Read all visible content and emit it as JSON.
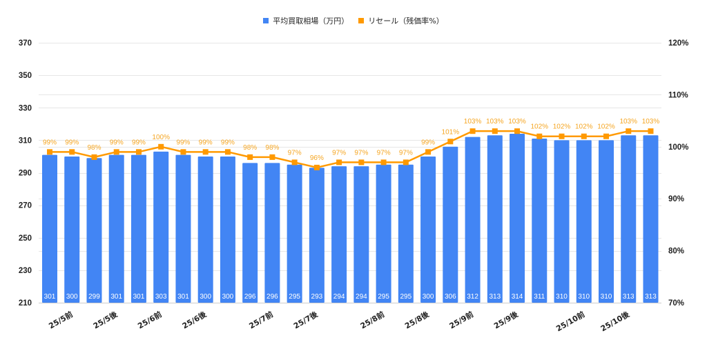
{
  "legend": {
    "bar_series": "平均買取相場（万円）",
    "line_series": "リセール（残価率%）"
  },
  "colors": {
    "bar": "#4285F4",
    "line": "#FF9900",
    "line_label": "#F5A623",
    "grid": "#E6E6E6",
    "axis_text": "#222222"
  },
  "chart_data": {
    "type": "bar+line",
    "title": "",
    "legend_position": "top",
    "categories": [
      "25/5前",
      "25/5前",
      "25/5後",
      "25/5後",
      "25/6前",
      "25/6前",
      "25/6後",
      "25/6後",
      "25/6後",
      "25/7前",
      "25/7前",
      "25/7後",
      "25/7後",
      "25/7後",
      "25/8前",
      "25/8前",
      "25/8後",
      "25/8後",
      "25/9前",
      "25/9前",
      "25/9後",
      "25/9後",
      "25/9後",
      "25/10前",
      "25/10前",
      "25/10後",
      "25/10後",
      "25/10後"
    ],
    "x_tick_labels": [
      {
        "index": 1,
        "label": "25/5前"
      },
      {
        "index": 3,
        "label": "25/5後"
      },
      {
        "index": 5,
        "label": "25/6前"
      },
      {
        "index": 7,
        "label": "25/6後"
      },
      {
        "index": 10,
        "label": "25/7前"
      },
      {
        "index": 12,
        "label": "25/7後"
      },
      {
        "index": 15,
        "label": "25/8前"
      },
      {
        "index": 17,
        "label": "25/8後"
      },
      {
        "index": 19,
        "label": "25/9前"
      },
      {
        "index": 21,
        "label": "25/9後"
      },
      {
        "index": 24,
        "label": "25/10前"
      },
      {
        "index": 26,
        "label": "25/10後"
      }
    ],
    "series": [
      {
        "name": "平均買取相場（万円）",
        "type": "bar",
        "axis": "left",
        "values": [
          301,
          300,
          299,
          301,
          301,
          303,
          301,
          300,
          300,
          296,
          296,
          295,
          293,
          294,
          294,
          295,
          295,
          300,
          306,
          312,
          313,
          314,
          311,
          310,
          310,
          310,
          313,
          313
        ]
      },
      {
        "name": "リセール（残価率%）",
        "type": "line",
        "axis": "right",
        "values": [
          99,
          99,
          98,
          99,
          99,
          100,
          99,
          99,
          99,
          98,
          98,
          97,
          96,
          97,
          97,
          97,
          97,
          99,
          101,
          103,
          103,
          103,
          102,
          102,
          102,
          102,
          103,
          103
        ]
      }
    ],
    "y_left": {
      "min": 210,
      "max": 370,
      "ticks": [
        210,
        230,
        250,
        270,
        290,
        310,
        330,
        350,
        370
      ]
    },
    "y_right": {
      "min": 70,
      "max": 120,
      "ticks": [
        "70%",
        "80%",
        "90%",
        "100%",
        "110%",
        "120%"
      ]
    },
    "grid": true,
    "xlabel": "",
    "ylabel": ""
  }
}
